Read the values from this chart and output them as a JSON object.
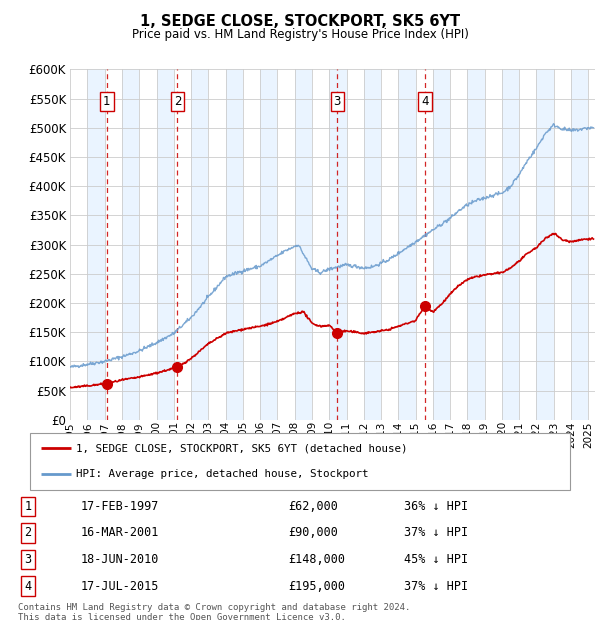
{
  "title": "1, SEDGE CLOSE, STOCKPORT, SK5 6YT",
  "subtitle": "Price paid vs. HM Land Registry's House Price Index (HPI)",
  "sale_dates": [
    "1997-02-17",
    "2001-03-16",
    "2010-06-18",
    "2015-07-17"
  ],
  "sale_prices": [
    62000,
    90000,
    148000,
    195000
  ],
  "sale_labels": [
    "1",
    "2",
    "3",
    "4"
  ],
  "sale_hpi_pct": [
    "36% ↓ HPI",
    "37% ↓ HPI",
    "45% ↓ HPI",
    "37% ↓ HPI"
  ],
  "sale_date_strs": [
    "17-FEB-1997",
    "16-MAR-2001",
    "18-JUN-2010",
    "17-JUL-2015"
  ],
  "sale_price_strs": [
    "£62,000",
    "£90,000",
    "£148,000",
    "£195,000"
  ],
  "legend_line1": "1, SEDGE CLOSE, STOCKPORT, SK5 6YT (detached house)",
  "legend_line2": "HPI: Average price, detached house, Stockport",
  "footer": "Contains HM Land Registry data © Crown copyright and database right 2024.\nThis data is licensed under the Open Government Licence v3.0.",
  "line_color_red": "#cc0000",
  "line_color_blue": "#6699cc",
  "vline_color": "#cc0000",
  "bg_band_color": "#ddeeff",
  "grid_color": "#cccccc",
  "ylim": [
    0,
    600000
  ],
  "yticks": [
    0,
    50000,
    100000,
    150000,
    200000,
    250000,
    300000,
    350000,
    400000,
    450000,
    500000,
    550000,
    600000
  ],
  "xstart_year": 1995,
  "xend_year": 2025,
  "sale_year_nums": [
    1997.12,
    2001.21,
    2010.46,
    2015.54
  ],
  "hpi_keypoints": [
    [
      1995.0,
      90000
    ],
    [
      1996.0,
      95000
    ],
    [
      1997.0,
      100000
    ],
    [
      1998.0,
      108000
    ],
    [
      1999.0,
      118000
    ],
    [
      2000.0,
      132000
    ],
    [
      2001.0,
      148000
    ],
    [
      2002.0,
      175000
    ],
    [
      2003.0,
      210000
    ],
    [
      2004.0,
      245000
    ],
    [
      2005.0,
      255000
    ],
    [
      2006.0,
      263000
    ],
    [
      2007.5,
      290000
    ],
    [
      2008.2,
      300000
    ],
    [
      2009.0,
      258000
    ],
    [
      2009.5,
      252000
    ],
    [
      2010.0,
      258000
    ],
    [
      2010.5,
      262000
    ],
    [
      2011.0,
      265000
    ],
    [
      2011.5,
      263000
    ],
    [
      2012.0,
      260000
    ],
    [
      2012.5,
      262000
    ],
    [
      2013.0,
      268000
    ],
    [
      2013.5,
      275000
    ],
    [
      2014.0,
      285000
    ],
    [
      2014.5,
      295000
    ],
    [
      2015.0,
      305000
    ],
    [
      2015.5,
      315000
    ],
    [
      2016.0,
      325000
    ],
    [
      2016.5,
      335000
    ],
    [
      2017.0,
      345000
    ],
    [
      2017.5,
      358000
    ],
    [
      2018.0,
      368000
    ],
    [
      2018.5,
      375000
    ],
    [
      2019.0,
      380000
    ],
    [
      2019.5,
      385000
    ],
    [
      2020.0,
      388000
    ],
    [
      2020.5,
      400000
    ],
    [
      2021.0,
      420000
    ],
    [
      2021.5,
      445000
    ],
    [
      2022.0,
      465000
    ],
    [
      2022.5,
      490000
    ],
    [
      2023.0,
      505000
    ],
    [
      2023.5,
      498000
    ],
    [
      2024.0,
      495000
    ],
    [
      2024.5,
      497000
    ],
    [
      2025.0,
      500000
    ]
  ],
  "red_keypoints": [
    [
      1995.0,
      55000
    ],
    [
      1996.0,
      58000
    ],
    [
      1997.12,
      62000
    ],
    [
      1998.0,
      68000
    ],
    [
      1999.0,
      73000
    ],
    [
      2000.0,
      80000
    ],
    [
      2001.21,
      90000
    ],
    [
      2002.0,
      105000
    ],
    [
      2003.0,
      130000
    ],
    [
      2004.0,
      148000
    ],
    [
      2005.0,
      155000
    ],
    [
      2006.0,
      160000
    ],
    [
      2007.0,
      168000
    ],
    [
      2007.5,
      175000
    ],
    [
      2008.0,
      182000
    ],
    [
      2008.5,
      185000
    ],
    [
      2009.0,
      165000
    ],
    [
      2009.5,
      160000
    ],
    [
      2010.0,
      162000
    ],
    [
      2010.46,
      148000
    ],
    [
      2010.5,
      150000
    ],
    [
      2011.0,
      152000
    ],
    [
      2011.5,
      150000
    ],
    [
      2012.0,
      148000
    ],
    [
      2012.5,
      150000
    ],
    [
      2013.0,
      152000
    ],
    [
      2013.5,
      155000
    ],
    [
      2014.0,
      160000
    ],
    [
      2014.5,
      165000
    ],
    [
      2015.0,
      170000
    ],
    [
      2015.54,
      195000
    ],
    [
      2016.0,
      185000
    ],
    [
      2016.5,
      198000
    ],
    [
      2017.0,
      215000
    ],
    [
      2017.5,
      230000
    ],
    [
      2018.0,
      240000
    ],
    [
      2018.5,
      245000
    ],
    [
      2019.0,
      248000
    ],
    [
      2019.5,
      250000
    ],
    [
      2020.0,
      252000
    ],
    [
      2020.5,
      260000
    ],
    [
      2021.0,
      272000
    ],
    [
      2021.5,
      285000
    ],
    [
      2022.0,
      295000
    ],
    [
      2022.5,
      310000
    ],
    [
      2023.0,
      320000
    ],
    [
      2023.5,
      308000
    ],
    [
      2024.0,
      305000
    ],
    [
      2024.5,
      308000
    ],
    [
      2025.0,
      310000
    ]
  ]
}
